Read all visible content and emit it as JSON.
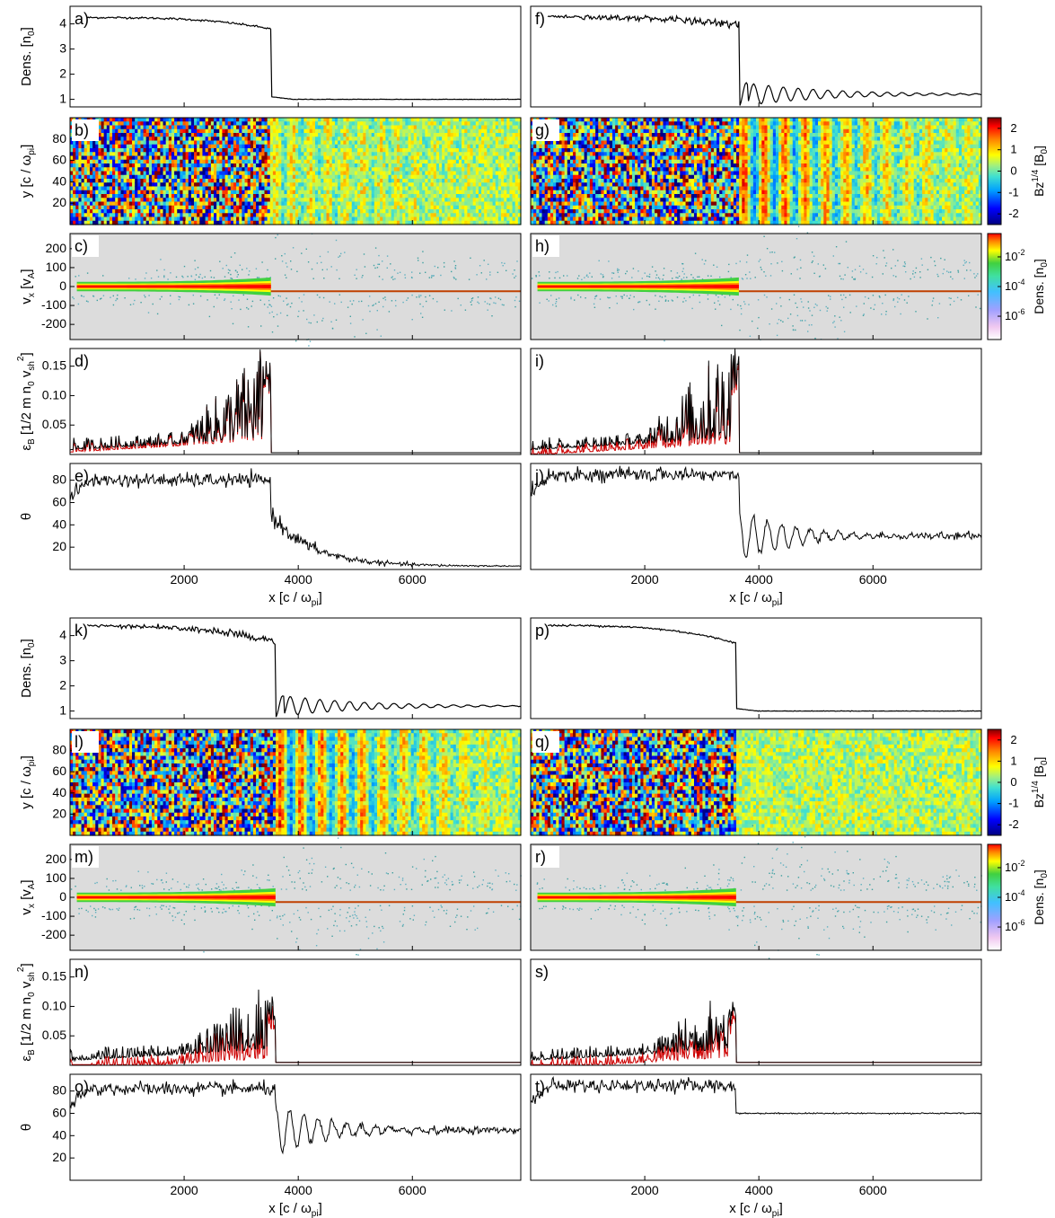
{
  "chart_data": {
    "type": "multi-panel",
    "x_axis": {
      "xlim": [
        0,
        7900
      ],
      "ticks": [
        2000,
        4000,
        6000
      ],
      "label_main": "x [c / ω",
      "label_sub": "pi",
      "label_close": "]"
    },
    "ylabels": {
      "dens": {
        "main": "Dens. [n",
        "sub": "0",
        "close": "]"
      },
      "y": {
        "main": "y [c / ω",
        "sub": "pi",
        "close": "]"
      },
      "vx": {
        "main": "v",
        "sub": "x",
        "mid": " [v",
        "sub2": "A",
        "close": "]"
      },
      "eps": {
        "main": "ε",
        "sub": "B",
        "mid": " [1/2 m n",
        "sub2": "0",
        "mid2": " v",
        "sub3": "sh",
        "sup": "2",
        "close": "]"
      },
      "theta": {
        "main": "θ"
      }
    },
    "ticks": {
      "dens": [
        1,
        2,
        3,
        4
      ],
      "y": [
        20,
        40,
        60,
        80
      ],
      "vx": [
        -200,
        -100,
        0,
        100,
        200
      ],
      "eps": [
        0.05,
        0.1,
        0.15
      ],
      "theta": [
        20,
        40,
        60,
        80
      ]
    },
    "ylims": {
      "dens": [
        0.7,
        4.7
      ],
      "y": [
        0,
        100
      ],
      "vx": [
        -280,
        280
      ],
      "eps": [
        0,
        0.18
      ],
      "theta": [
        0,
        95
      ]
    },
    "colorbars": {
      "bz": {
        "label_main": "Bz",
        "label_sup": "1/4",
        "label_unit": " [B",
        "label_unit_sub": "0",
        "label_close": "]",
        "ticks": [
          "2",
          "1",
          "0",
          "-1",
          "-2"
        ],
        "range": [
          -2.5,
          2.5
        ]
      },
      "dens": {
        "label_main": "Dens. [n",
        "label_sub": "0",
        "label_close": "]",
        "ticks": [
          {
            "base": "10",
            "exp": "-2"
          },
          {
            "base": "10",
            "exp": "-4"
          },
          {
            "base": "10",
            "exp": "-6"
          }
        ]
      }
    },
    "columns": [
      {
        "panels": [
          "a)",
          "b)",
          "c)",
          "d)",
          "e)"
        ],
        "shock_x": 3520,
        "density": {
          "upstream": 1.0,
          "downstream_start": 4.25,
          "downstream_end": 3.8,
          "step_ratio": 1.05,
          "ripple_amp": 0.0
        },
        "theta": {
          "downstream": 80,
          "upstream": 3,
          "transition": "decay"
        },
        "epsB_black_peak": 0.16,
        "epsB_red_offset": 0.0,
        "epsB_upstream": 0.003,
        "upstream_wave_stripes": 14,
        "stripe_strength": 0.4
      },
      {
        "panels": [
          "f)",
          "g)",
          "h)",
          "i)",
          "j)"
        ],
        "shock_x": 3650,
        "density": {
          "upstream": 1.2,
          "downstream_start": 4.3,
          "downstream_end": 4.0,
          "step_ratio": 1.2,
          "ripple_amp": 0.5
        },
        "theta": {
          "downstream": 85,
          "upstream": 30,
          "transition": "oscillate"
        },
        "epsB_black_peak": 0.18,
        "epsB_red_offset": -0.005,
        "epsB_upstream": 0.003,
        "upstream_wave_stripes": 12,
        "stripe_strength": 1.0
      },
      {
        "panels": [
          "k)",
          "l)",
          "m)",
          "n)",
          "o)"
        ],
        "shock_x": 3600,
        "density": {
          "upstream": 1.2,
          "downstream_start": 4.4,
          "downstream_end": 3.8,
          "step_ratio": 1.3,
          "ripple_amp": 0.45
        },
        "theta": {
          "downstream": 82,
          "upstream": 45,
          "transition": "oscillate"
        },
        "epsB_black_peak": 0.12,
        "epsB_red_offset": -0.012,
        "epsB_upstream": 0.005,
        "upstream_wave_stripes": 12,
        "stripe_strength": 1.0
      },
      {
        "panels": [
          "p)",
          "q)",
          "r)",
          "s)",
          "t)"
        ],
        "shock_x": 3600,
        "density": {
          "upstream": 1.0,
          "downstream_start": 4.4,
          "downstream_end": 3.7,
          "step_ratio": 1.0,
          "ripple_amp": 0.0
        },
        "theta": {
          "downstream": 85,
          "upstream": 60,
          "transition": "step"
        },
        "epsB_black_peak": 0.11,
        "epsB_red_offset": -0.01,
        "epsB_upstream": 0.005,
        "upstream_wave_stripes": 0,
        "stripe_strength": 0.0
      }
    ]
  }
}
